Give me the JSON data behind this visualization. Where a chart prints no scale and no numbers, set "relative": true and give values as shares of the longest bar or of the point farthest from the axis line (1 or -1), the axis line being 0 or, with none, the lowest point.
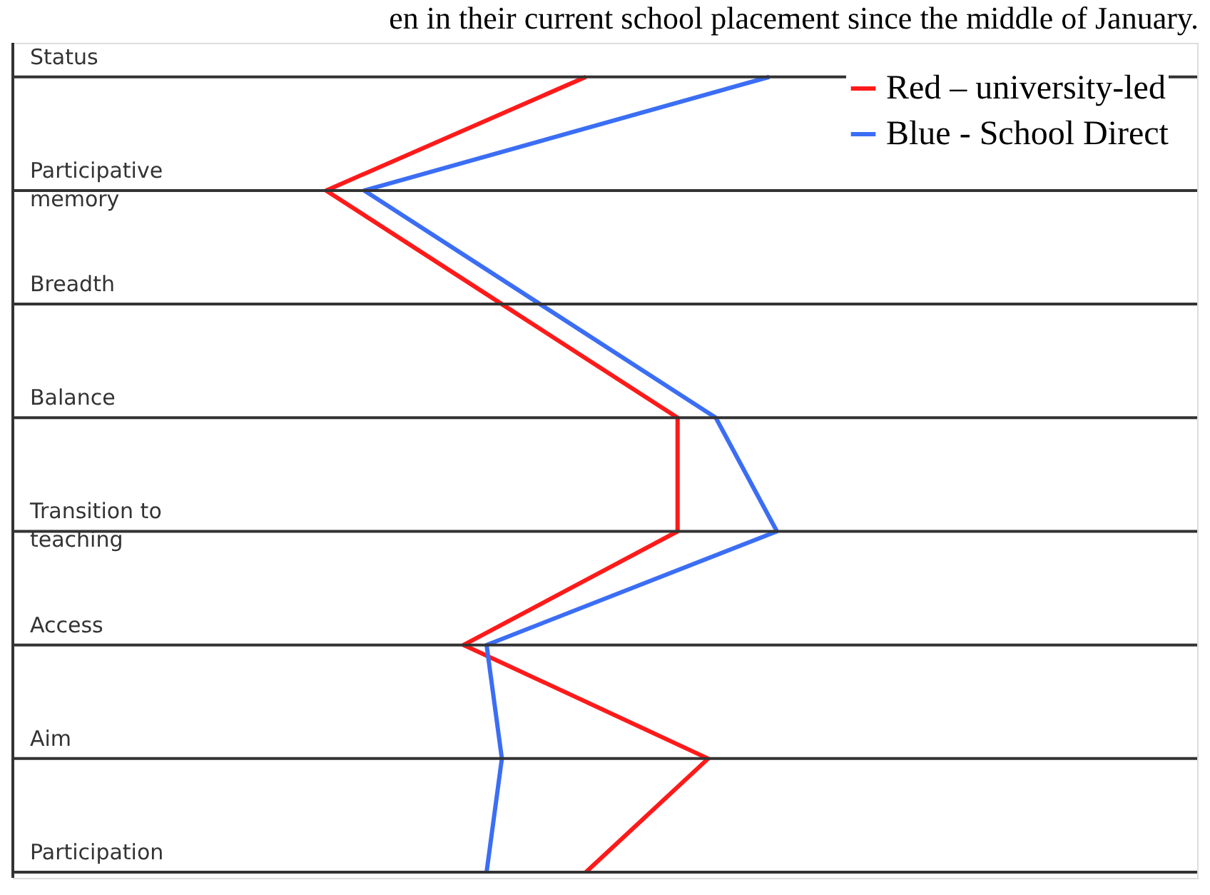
{
  "chart_data": {
    "type": "line",
    "orientation": "horizontal",
    "relative": true,
    "annotations": [
      "en in their current school placement since the middle of January."
    ],
    "categories": [
      "Status",
      "Participative\nmemory",
      "Breadth",
      "Balance",
      "Transition to\nteaching",
      "Access",
      "Aim",
      "Participation"
    ],
    "series": [
      {
        "name": "Red – university-led",
        "color": "#ff1a1a",
        "values": [
          0.75,
          0.41,
          0.64,
          0.87,
          0.87,
          0.59,
          0.91,
          0.75
        ]
      },
      {
        "name": "Blue - School Direct",
        "color": "#3b6ef5",
        "values": [
          0.99,
          0.46,
          0.69,
          0.92,
          1.0,
          0.62,
          0.64,
          0.62
        ]
      }
    ],
    "legend": "top right",
    "grid": "y",
    "marker": "none",
    "line_style": "solid"
  }
}
